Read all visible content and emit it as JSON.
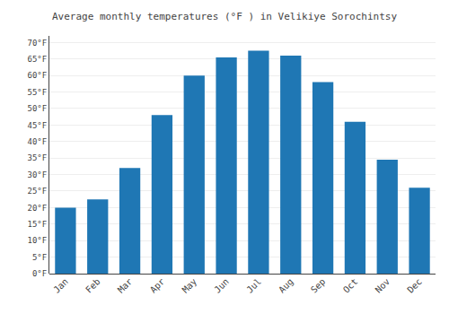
{
  "chart_data": {
    "type": "bar",
    "title": "Average monthly temperatures (°F ) in Velikiye Sorochintsy",
    "categories": [
      "Jan",
      "Feb",
      "Mar",
      "Apr",
      "May",
      "Jun",
      "Jul",
      "Aug",
      "Sep",
      "Oct",
      "Nov",
      "Dec"
    ],
    "values": [
      20,
      22.5,
      32,
      48,
      60,
      65.5,
      67.5,
      66,
      58,
      46,
      34.5,
      26
    ],
    "ylim": [
      0,
      72
    ],
    "yticks": [
      {
        "value": 0,
        "label": "0°F"
      },
      {
        "value": 5,
        "label": "5°F"
      },
      {
        "value": 10,
        "label": "10°F"
      },
      {
        "value": 15,
        "label": "15°F"
      },
      {
        "value": 20,
        "label": "20°F"
      },
      {
        "value": 25,
        "label": "25°F"
      },
      {
        "value": 30,
        "label": "30°F"
      },
      {
        "value": 35,
        "label": "35°F"
      },
      {
        "value": 40,
        "label": "40°F"
      },
      {
        "value": 45,
        "label": "45°F"
      },
      {
        "value": 50,
        "label": "50°F"
      },
      {
        "value": 55,
        "label": "55°F"
      },
      {
        "value": 60,
        "label": "60°F"
      },
      {
        "value": 65,
        "label": "65°F"
      },
      {
        "value": 70,
        "label": "70°F"
      }
    ],
    "grid": true
  }
}
